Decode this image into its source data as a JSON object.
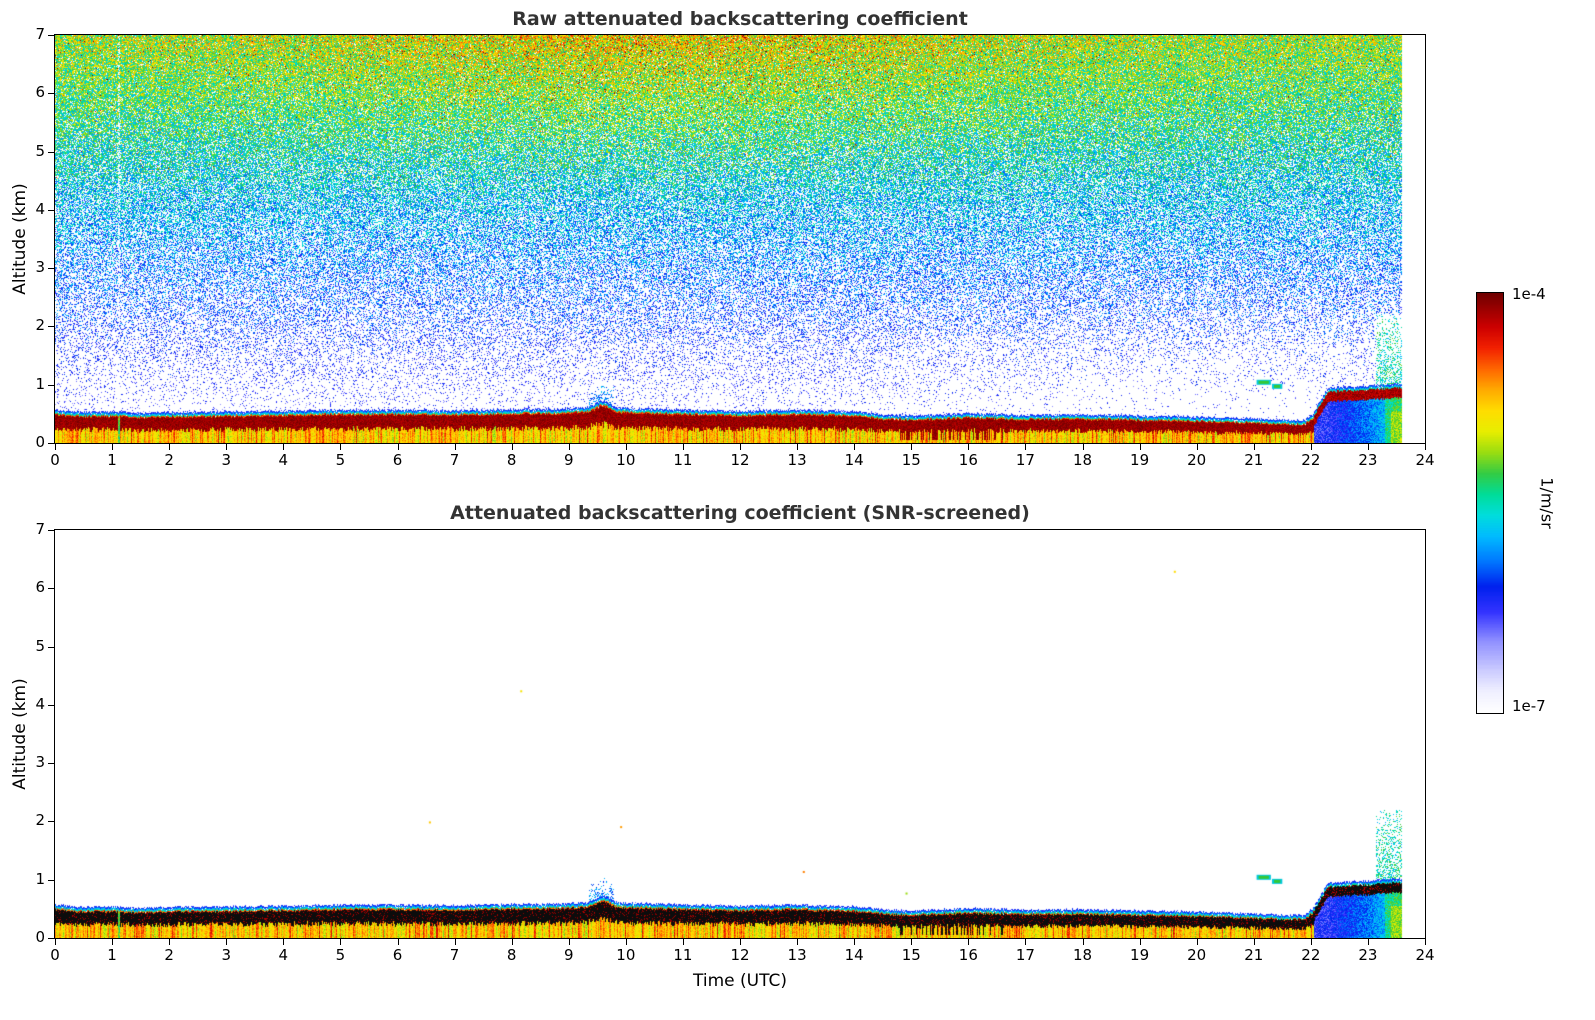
{
  "panels": [
    {
      "title": "Raw attenuated backscattering coefficient",
      "ylabel": "Altitude (km)",
      "xlabel": "",
      "xticks": [
        "0",
        "1",
        "2",
        "3",
        "4",
        "5",
        "6",
        "7",
        "8",
        "9",
        "10",
        "11",
        "12",
        "13",
        "14",
        "15",
        "16",
        "17",
        "18",
        "19",
        "20",
        "21",
        "22",
        "23",
        "24"
      ],
      "yticks": [
        "0",
        "1",
        "2",
        "3",
        "4",
        "5",
        "6",
        "7"
      ],
      "render": {
        "noise": true,
        "core": "darkred",
        "seed": 1234567,
        "speckles": false
      }
    },
    {
      "title": "Attenuated backscattering coefficient (SNR-screened)",
      "ylabel": "Altitude (km)",
      "xlabel": "Time (UTC)",
      "xticks": [
        "0",
        "1",
        "2",
        "3",
        "4",
        "5",
        "6",
        "7",
        "8",
        "9",
        "10",
        "11",
        "12",
        "13",
        "14",
        "15",
        "16",
        "17",
        "18",
        "19",
        "20",
        "21",
        "22",
        "23",
        "24"
      ],
      "yticks": [
        "0",
        "1",
        "2",
        "3",
        "4",
        "5",
        "6",
        "7"
      ],
      "render": {
        "noise": false,
        "core": "black",
        "seed": 7654321,
        "speckles": true
      }
    }
  ],
  "colorbar": {
    "max_label": "1e-4",
    "min_label": "1e-7",
    "units": "1/m/sr"
  },
  "chart_data": {
    "type": "heatmap",
    "titles": [
      "Raw attenuated backscattering coefficient",
      "Attenuated backscattering coefficient (SNR-screened)"
    ],
    "xlabel": "Time (UTC)",
    "ylabel": "Altitude (km)",
    "x_range_utc": [
      0,
      24
    ],
    "y_range_km": [
      0,
      7
    ],
    "value_scale": "log",
    "value_units": "1/m/sr",
    "value_range": [
      1e-07,
      0.0001
    ],
    "data_end_utc": 23.6,
    "legend_position": "right-colorbar",
    "grid": false,
    "colormap_stops": [
      {
        "v": 0.0,
        "color": "#ffffff"
      },
      {
        "v": 0.05,
        "color": "#f0f0ff"
      },
      {
        "v": 0.1,
        "color": "#ccccff"
      },
      {
        "v": 0.17,
        "color": "#9090ff"
      },
      {
        "v": 0.24,
        "color": "#3333ff"
      },
      {
        "v": 0.3,
        "color": "#0020ee"
      },
      {
        "v": 0.36,
        "color": "#0077ff"
      },
      {
        "v": 0.42,
        "color": "#00bbff"
      },
      {
        "v": 0.47,
        "color": "#00dddd"
      },
      {
        "v": 0.52,
        "color": "#00dd99"
      },
      {
        "v": 0.57,
        "color": "#33cc44"
      },
      {
        "v": 0.62,
        "color": "#99dd11"
      },
      {
        "v": 0.67,
        "color": "#e8ee00"
      },
      {
        "v": 0.72,
        "color": "#ffdd00"
      },
      {
        "v": 0.77,
        "color": "#ffaa00"
      },
      {
        "v": 0.82,
        "color": "#ff6600"
      },
      {
        "v": 0.87,
        "color": "#f22000"
      },
      {
        "v": 0.92,
        "color": "#cc0000"
      },
      {
        "v": 1.0,
        "color": "#700000"
      }
    ],
    "boundary_layer_top_km": {
      "t": [
        0,
        0.5,
        1,
        1.5,
        2,
        3,
        4,
        5,
        6,
        7,
        8,
        9,
        9.35,
        9.6,
        9.85,
        10.5,
        11,
        12,
        13,
        14,
        14.5,
        15,
        16,
        17,
        18,
        19,
        20,
        21,
        21.5,
        21.9,
        22.05,
        22.3,
        22.8,
        23.3,
        23.6
      ],
      "h": [
        0.5,
        0.46,
        0.47,
        0.44,
        0.46,
        0.47,
        0.48,
        0.5,
        0.5,
        0.49,
        0.51,
        0.52,
        0.55,
        0.66,
        0.54,
        0.52,
        0.5,
        0.48,
        0.5,
        0.47,
        0.42,
        0.4,
        0.44,
        0.41,
        0.42,
        0.4,
        0.38,
        0.35,
        0.33,
        0.32,
        0.45,
        0.88,
        0.9,
        0.93,
        0.95
      ]
    },
    "noise_profile": [
      {
        "z": 0.55,
        "density": 0.05,
        "vmin": 0.16,
        "vmax": 0.3
      },
      {
        "z": 1.0,
        "density": 0.1,
        "vmin": 0.17,
        "vmax": 0.32
      },
      {
        "z": 1.5,
        "density": 0.16,
        "vmin": 0.18,
        "vmax": 0.35
      },
      {
        "z": 2.0,
        "density": 0.25,
        "vmin": 0.2,
        "vmax": 0.4
      },
      {
        "z": 3.0,
        "density": 0.4,
        "vmin": 0.24,
        "vmax": 0.48
      },
      {
        "z": 4.0,
        "density": 0.57,
        "vmin": 0.29,
        "vmax": 0.55
      },
      {
        "z": 5.0,
        "density": 0.74,
        "vmin": 0.34,
        "vmax": 0.63
      },
      {
        "z": 6.0,
        "density": 0.89,
        "vmin": 0.4,
        "vmax": 0.72
      },
      {
        "z": 7.0,
        "density": 0.97,
        "vmin": 0.45,
        "vmax": 0.8
      }
    ],
    "features": {
      "gap_utc": 1.12,
      "gap_halfwidth_utc": 0.022,
      "bump_plume": {
        "t0": 9.35,
        "t1": 9.8,
        "extra_km": 0.4
      },
      "elevated_layer": {
        "t0": 22.05,
        "t1": 23.6,
        "top_km": 0.95,
        "thickness_km": 0.17
      },
      "plume": {
        "t0": 23.15,
        "t1": 23.6,
        "top_km": 2.2
      },
      "dark_streaks": {
        "t0": 14.8,
        "t1": 16.6
      },
      "cloud_dashes": [
        {
          "t0": 21.05,
          "t1": 21.3,
          "z_km": 1.05
        },
        {
          "t0": 21.32,
          "t1": 21.5,
          "z_km": 0.98
        }
      ],
      "speckles_screened": [
        {
          "t": 6.55,
          "z": 2.0,
          "v": 0.74
        },
        {
          "t": 8.15,
          "z": 4.25,
          "v": 0.7
        },
        {
          "t": 9.9,
          "z": 1.92,
          "v": 0.78
        },
        {
          "t": 13.1,
          "z": 1.15,
          "v": 0.8
        },
        {
          "t": 14.9,
          "z": 0.78,
          "v": 0.62
        },
        {
          "t": 19.6,
          "z": 6.3,
          "v": 0.72
        }
      ]
    }
  }
}
